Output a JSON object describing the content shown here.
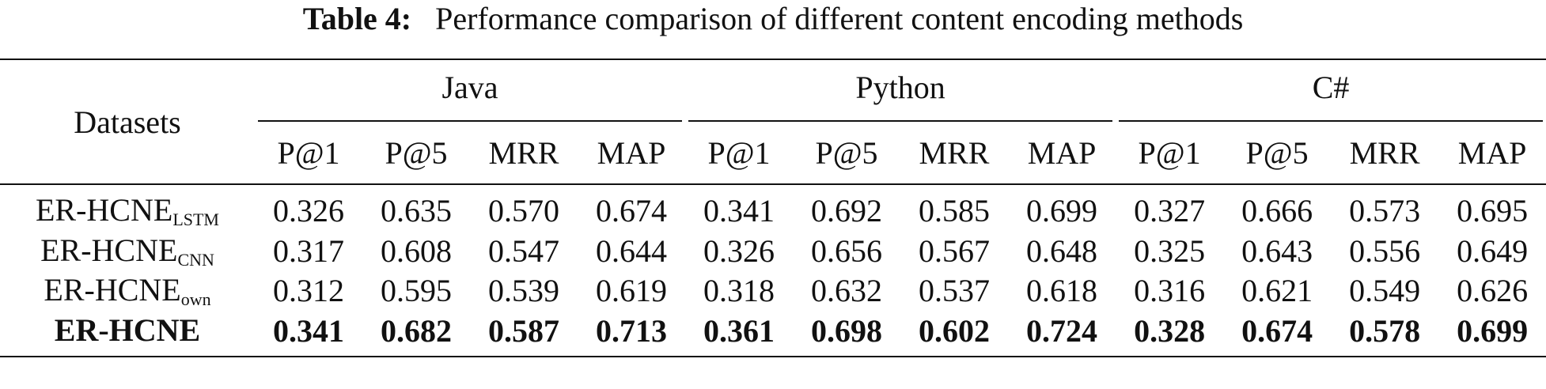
{
  "caption": {
    "label": "Table 4:",
    "text": "Performance comparison of different content encoding methods"
  },
  "table": {
    "corner_label": "Datasets",
    "groups": [
      {
        "name": "Java",
        "metrics": [
          "P@1",
          "P@5",
          "MRR",
          "MAP"
        ]
      },
      {
        "name": "Python",
        "metrics": [
          "P@1",
          "P@5",
          "MRR",
          "MAP"
        ]
      },
      {
        "name": "C#",
        "metrics": [
          "P@1",
          "P@5",
          "MRR",
          "MAP"
        ]
      }
    ],
    "rows": [
      {
        "name": "ER-HCNE",
        "subscript": "LSTM",
        "bold": false,
        "values": [
          "0.326",
          "0.635",
          "0.570",
          "0.674",
          "0.341",
          "0.692",
          "0.585",
          "0.699",
          "0.327",
          "0.666",
          "0.573",
          "0.695"
        ]
      },
      {
        "name": "ER-HCNE",
        "subscript": "CNN",
        "bold": false,
        "values": [
          "0.317",
          "0.608",
          "0.547",
          "0.644",
          "0.326",
          "0.656",
          "0.567",
          "0.648",
          "0.325",
          "0.643",
          "0.556",
          "0.649"
        ]
      },
      {
        "name": "ER-HCNE",
        "subscript": "own",
        "bold": false,
        "values": [
          "0.312",
          "0.595",
          "0.539",
          "0.619",
          "0.318",
          "0.632",
          "0.537",
          "0.618",
          "0.316",
          "0.621",
          "0.549",
          "0.626"
        ]
      },
      {
        "name": "ER-HCNE",
        "subscript": "",
        "bold": true,
        "values": [
          "0.341",
          "0.682",
          "0.587",
          "0.713",
          "0.361",
          "0.698",
          "0.602",
          "0.724",
          "0.328",
          "0.674",
          "0.578",
          "0.699"
        ]
      }
    ]
  }
}
